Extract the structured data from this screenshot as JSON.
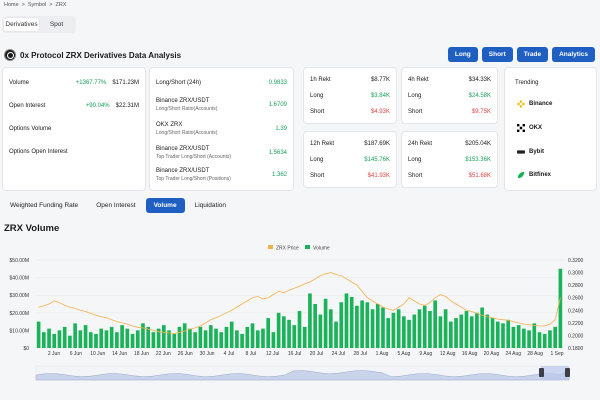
{
  "breadcrumb": [
    "Home",
    ">",
    "Symbol",
    ">",
    "ZRX"
  ],
  "segment": {
    "items": [
      "Derivatives",
      "Spot"
    ],
    "active": "Derivatives"
  },
  "title": "0x Protocol ZRX Derivatives Data Analysis",
  "actions": [
    "Long",
    "Short",
    "Trade",
    "Analytics"
  ],
  "overview": [
    {
      "label": "Volume",
      "change": "+1367.77%",
      "value": "$171.23M"
    },
    {
      "label": "Open Interest",
      "change": "+90.04%",
      "value": "$22.31M"
    },
    {
      "label": "Options Volume",
      "change": "",
      "value": ""
    },
    {
      "label": "Options Open Interest",
      "change": "",
      "value": ""
    }
  ],
  "ratios": [
    {
      "label": "Long/Short (24h)",
      "sub": "",
      "value": "0.9833"
    },
    {
      "label": "Binance ZRX/USDT",
      "sub": "Long/Short Ratio(Accounts)",
      "value": "1.6709"
    },
    {
      "label": "OKX ZRX",
      "sub": "Long/Short Ratio(Accounts)",
      "value": "1.39"
    },
    {
      "label": "Binance ZRX/USDT",
      "sub": "Top Trader Long/Short (Accounts)",
      "value": "1.5634"
    },
    {
      "label": "Binance ZRX/USDT",
      "sub": "Top Trader Long/Short (Positions)",
      "value": "1.362"
    }
  ],
  "rekt": [
    {
      "period": "1h Rekt",
      "total": "$8.77K",
      "long_label": "Long",
      "long": "$3.84K",
      "short_label": "Short",
      "short": "$4.93K"
    },
    {
      "period": "4h Rekt",
      "total": "$34.33K",
      "long_label": "Long",
      "long": "$24.58K",
      "short_label": "Short",
      "short": "$9.75K"
    },
    {
      "period": "12h Rekt",
      "total": "$187.69K",
      "long_label": "Long",
      "long": "$145.76K",
      "short_label": "Short",
      "short": "$41.93K"
    },
    {
      "period": "24h Rekt",
      "total": "$205.04K",
      "long_label": "Long",
      "long": "$153.36K",
      "short_label": "Short",
      "short": "$51.68K"
    }
  ],
  "trending": {
    "title": "Trending",
    "items": [
      {
        "name": "Binance",
        "icon": "binance-icon",
        "color": "#f0b90b"
      },
      {
        "name": "OKX",
        "icon": "okx-icon",
        "color": "#000000"
      },
      {
        "name": "Bybit",
        "icon": "bybit-icon",
        "color": "#222222"
      },
      {
        "name": "Bitfinex",
        "icon": "bitfinex-icon",
        "color": "#16b157"
      }
    ]
  },
  "tabs": [
    "Weighted Funding Rate",
    "Open Interest",
    "Volume",
    "Liquidation"
  ],
  "active_tab": "Volume",
  "chart_title": "ZRX Volume",
  "colors": {
    "accent": "#1f5fc2",
    "volume": "#1bb35a",
    "price": "#f4b04b",
    "positive": "#19a05b",
    "negative": "#e24343"
  },
  "chart_data": {
    "type": "bar",
    "legend": [
      "ZRX Price",
      "Volume"
    ],
    "legend_position": "top",
    "x_ticks": [
      "2 Jun",
      "6 Jun",
      "10 Jun",
      "14 Jun",
      "18 Jun",
      "22 Jun",
      "26 Jun",
      "30 Jun",
      "4 Jul",
      "8 Jul",
      "12 Jul",
      "16 Jul",
      "20 Jul",
      "24 Jul",
      "28 Jul",
      "1 Aug",
      "5 Aug",
      "9 Aug",
      "12 Aug",
      "16 Aug",
      "20 Aug",
      "24 Aug",
      "28 Aug",
      "1 Sep"
    ],
    "y_left_ticks": [
      "$0",
      "$10.00M",
      "$20.00M",
      "$30.00M",
      "$40.00M",
      "$50.00M"
    ],
    "y_left_range": [
      0,
      50
    ],
    "y_right_ticks": [
      "0.1800",
      "0.2000",
      "0.2200",
      "0.2400",
      "0.2600",
      "0.2800",
      "0.3000",
      "0.3200"
    ],
    "y_right_range": [
      0.18,
      0.32
    ],
    "series": [
      {
        "name": "Volume",
        "unit": "$M",
        "values": [
          15,
          9,
          11,
          8,
          10,
          12,
          7,
          14,
          10,
          13,
          9,
          8,
          11,
          10,
          12,
          9,
          13,
          11,
          8,
          10,
          14,
          12,
          9,
          11,
          13,
          10,
          8,
          12,
          14,
          11,
          9,
          12,
          10,
          13,
          11,
          9,
          12,
          15,
          10,
          8,
          12,
          14,
          10,
          11,
          17,
          9,
          20,
          18,
          16,
          13,
          21,
          12,
          31,
          25,
          19,
          28,
          22,
          15,
          26,
          31,
          29,
          24,
          27,
          26,
          22,
          25,
          23,
          17,
          20,
          22,
          18,
          16,
          19,
          22,
          24,
          21,
          27,
          18,
          22,
          15,
          17,
          19,
          21,
          18,
          20,
          23,
          19,
          17,
          15,
          14,
          16,
          12,
          13,
          11,
          10,
          14,
          9,
          8,
          10,
          12,
          45
        ]
      },
      {
        "name": "ZRX Price",
        "unit": "USD",
        "values": [
          0.245,
          0.247,
          0.25,
          0.255,
          0.252,
          0.248,
          0.245,
          0.243,
          0.24,
          0.238,
          0.235,
          0.232,
          0.23,
          0.228,
          0.225,
          0.222,
          0.22,
          0.218,
          0.215,
          0.213,
          0.212,
          0.21,
          0.208,
          0.206,
          0.205,
          0.204,
          0.203,
          0.205,
          0.207,
          0.21,
          0.212,
          0.215,
          0.22,
          0.225,
          0.228,
          0.232,
          0.236,
          0.24,
          0.245,
          0.25,
          0.255,
          0.26,
          0.262,
          0.258,
          0.26,
          0.265,
          0.27,
          0.268,
          0.272,
          0.275,
          0.278,
          0.282,
          0.285,
          0.29,
          0.295,
          0.298,
          0.3,
          0.297,
          0.295,
          0.29,
          0.285,
          0.28,
          0.27,
          0.26,
          0.255,
          0.25,
          0.245,
          0.242,
          0.24,
          0.245,
          0.25,
          0.26,
          0.255,
          0.25,
          0.248,
          0.252,
          0.26,
          0.265,
          0.262,
          0.255,
          0.25,
          0.245,
          0.24,
          0.238,
          0.235,
          0.232,
          0.23,
          0.228,
          0.226,
          0.225,
          0.224,
          0.222,
          0.22,
          0.218,
          0.217,
          0.216,
          0.215,
          0.215,
          0.218,
          0.225,
          0.26
        ]
      }
    ]
  }
}
